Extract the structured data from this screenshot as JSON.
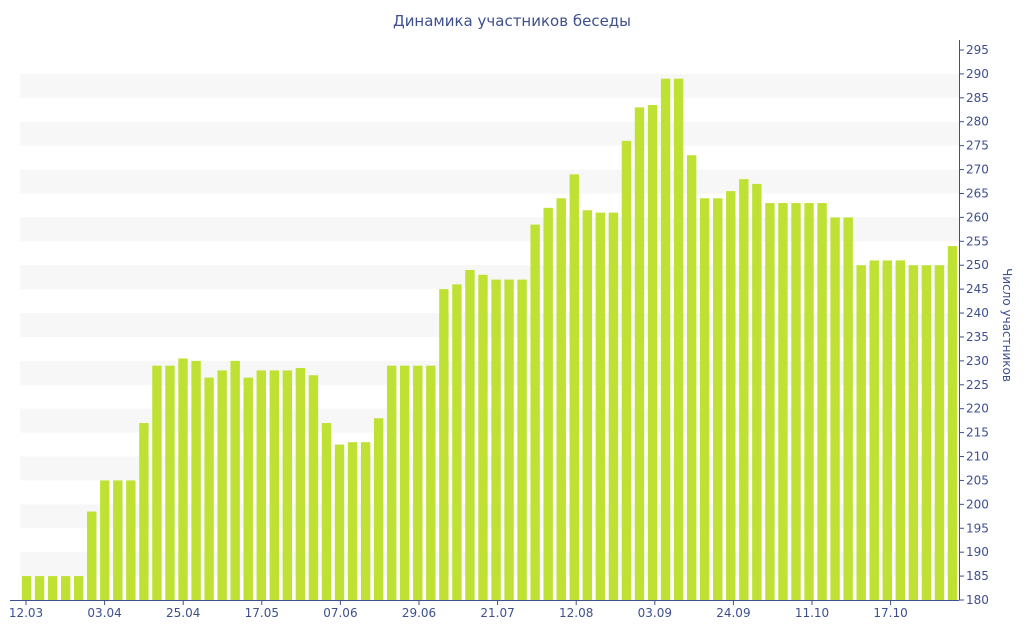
{
  "chart_data": {
    "type": "bar",
    "title": "Динамика участников беседы",
    "ylabel": "Число участников",
    "xlabel": "",
    "ylim": [
      180,
      295
    ],
    "ytick_step": 5,
    "y_axis_side": "right",
    "grid": "alternating horizontal bands",
    "x_tick_labels": [
      "12.03",
      "03.04",
      "25.04",
      "17.05",
      "07.06",
      "29.06",
      "21.07",
      "12.08",
      "03.09",
      "24.09",
      "11.10",
      "17.10"
    ],
    "bar_color": "#bfe133",
    "band_color": "#f7f7f7",
    "axis_color": "#3e4f8e",
    "values": [
      185,
      185,
      185,
      185,
      185,
      198.5,
      205,
      205,
      205,
      217,
      229,
      229,
      230.5,
      230,
      226.5,
      228,
      230,
      226.5,
      228,
      228,
      228,
      228.5,
      227,
      217,
      212.5,
      213,
      213,
      218,
      229,
      229,
      229,
      229,
      245,
      246,
      249,
      248,
      247,
      247,
      247,
      258.5,
      262,
      264,
      269,
      261.5,
      261,
      261,
      276,
      283,
      283.5,
      289,
      289,
      273,
      264,
      264,
      265.5,
      268,
      267,
      263,
      263,
      263,
      263,
      263,
      260,
      260,
      250,
      251,
      251,
      251,
      250,
      250,
      250,
      254
    ]
  }
}
